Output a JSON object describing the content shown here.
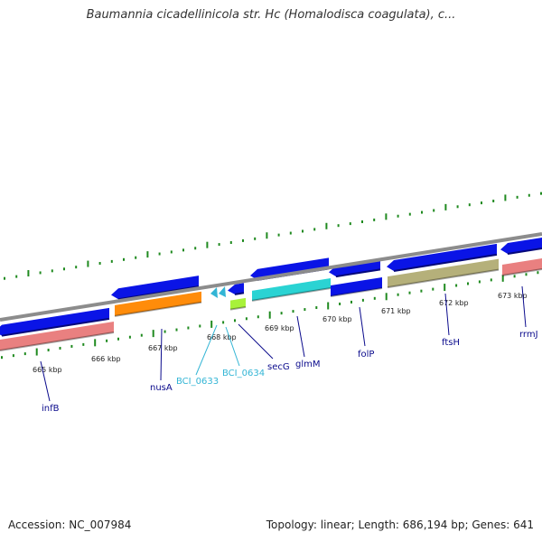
{
  "title": "Baumannia cicadellinicola str. Hc (Homalodisca coagulata), c...",
  "footer": {
    "accession": "Accession: NC_007984",
    "summary": "Topology: linear; Length: 686,194 bp; Genes: 641"
  },
  "colors": {
    "backbone": "#8c8c8c",
    "tick": "#1f8a1f",
    "cds_forward": "#0a14e6",
    "label_dark": "#0a0a8c",
    "label_light": "#33b5d5",
    "pink": "#e98080",
    "orange": "#ff8c0a",
    "cyan": "#2ad3d3",
    "olive": "#b5b07a",
    "lime": "#a8f23a"
  },
  "tick_labels": [
    "665 kbp",
    "666 kbp",
    "667 kbp",
    "668 kbp",
    "669 kbp",
    "670 kbp",
    "671 kbp",
    "672 kbp",
    "673 kbp"
  ],
  "genes": [
    {
      "name": "infB",
      "style": "dark"
    },
    {
      "name": "nusA",
      "style": "dark"
    },
    {
      "name": "BCI_0633",
      "style": "light"
    },
    {
      "name": "BCI_0634",
      "style": "light"
    },
    {
      "name": "secG",
      "style": "dark"
    },
    {
      "name": "glmM",
      "style": "dark"
    },
    {
      "name": "folP",
      "style": "dark"
    },
    {
      "name": "ftsH",
      "style": "dark"
    },
    {
      "name": "rrmJ",
      "style": "dark"
    }
  ]
}
